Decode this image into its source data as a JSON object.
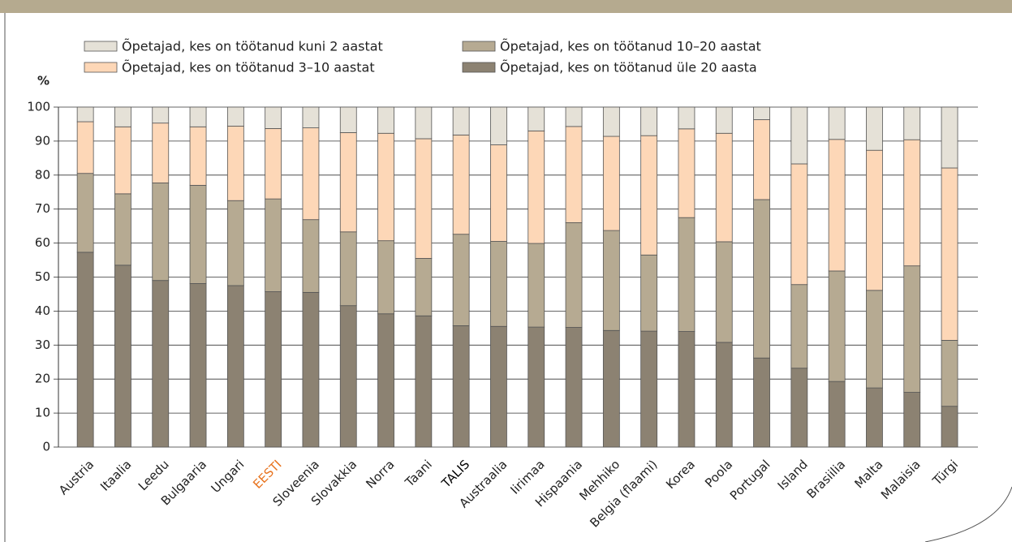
{
  "chart_data": {
    "type": "stacked_bar",
    "y_label": "%",
    "categories": [
      "Austria",
      "Itaalia",
      "Leedu",
      "Bulgaaria",
      "Ungari",
      "EESTI",
      "Sloveenia",
      "Slovakkia",
      "Norra",
      "Taani",
      "TALIS",
      "Austraalia",
      "Iirimaa",
      "Hispaania",
      "Mehhiko",
      "Belgia (flaami)",
      "Korea",
      "Poola",
      "Portugal",
      "Island",
      "Brasiilia",
      "Malta",
      "Malaisia",
      "Türgi"
    ],
    "category_colors": [
      "#222",
      "#222",
      "#222",
      "#222",
      "#222",
      "#e8731e",
      "#222",
      "#222",
      "#222",
      "#222",
      "#000",
      "#222",
      "#222",
      "#222",
      "#222",
      "#222",
      "#222",
      "#222",
      "#222",
      "#222",
      "#222",
      "#222",
      "#222",
      "#222"
    ],
    "series": [
      {
        "name": "Õpetajad, kes on töötanud üle 20 aasta",
        "color": "#8c8272",
        "values": [
          57.3,
          53.5,
          49.0,
          48.1,
          47.5,
          45.7,
          45.5,
          41.6,
          39.2,
          38.6,
          35.7,
          35.5,
          35.3,
          35.2,
          34.3,
          34.1,
          34.0,
          30.8,
          26.2,
          23.2,
          19.3,
          17.4,
          16.1,
          12.0
        ]
      },
      {
        "name": "Õpetajad, kes on töötanud 10–20 aastat",
        "color": "#b6aa92",
        "values": [
          23.2,
          21.0,
          28.7,
          28.9,
          25.0,
          27.3,
          21.4,
          21.7,
          21.5,
          16.9,
          26.9,
          25.0,
          24.6,
          30.8,
          29.4,
          22.4,
          33.5,
          29.6,
          46.6,
          24.6,
          32.5,
          28.7,
          37.2,
          19.4
        ]
      },
      {
        "name": "Õpetajad, kes on töötanud 3–10 aastat",
        "color": "#fdd7b7",
        "values": [
          15.2,
          19.7,
          17.6,
          17.2,
          21.9,
          20.7,
          27.0,
          29.2,
          31.6,
          35.2,
          29.2,
          28.4,
          33.1,
          28.3,
          27.7,
          35.1,
          26.1,
          31.9,
          23.5,
          35.5,
          38.7,
          41.2,
          37.1,
          50.7
        ]
      },
      {
        "name": "Õpetajad, kes on töötanud kuni 2 aastat",
        "color": "#e5e1d7",
        "values": [
          4.3,
          5.8,
          4.7,
          5.8,
          5.6,
          6.3,
          6.1,
          7.5,
          7.7,
          9.3,
          8.2,
          11.1,
          7.0,
          5.7,
          8.6,
          8.4,
          6.4,
          7.7,
          3.7,
          16.7,
          9.5,
          12.7,
          9.6,
          17.9
        ]
      }
    ],
    "ylim": [
      0,
      100
    ],
    "yticks": [
      0,
      10,
      20,
      30,
      40,
      50,
      60,
      70,
      80,
      90,
      100
    ],
    "grid": true
  }
}
